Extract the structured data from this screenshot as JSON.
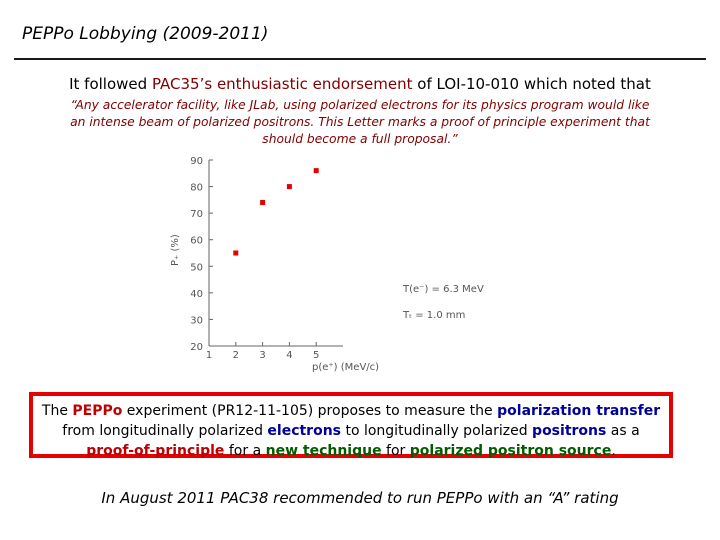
{
  "slide": {
    "title": "PEPPo Lobbying (2009-2011)",
    "lead_before": "It followed ",
    "lead_accent": "PAC35’s enthusiastic endorsement",
    "lead_after": " of LOI-10-010 which noted that",
    "quote_line1": "“Any accelerator facility, like JLab, using polarized electrons for its physics program would like",
    "quote_line2": "an intense beam of polarized positrons. This Letter marks a proof of principle experiment that",
    "quote_line3": "should become a full proposal.”",
    "footer": "In August 2011 PAC38 recommended to run PEPPo with an “A” rating"
  },
  "box": {
    "t1": "The ",
    "t2": "PEPPo",
    "t3": " experiment (PR12-11-105) proposes to measure the ",
    "t4": "polarization transfer",
    "t5": "from longitudinally polarized ",
    "t6": "electrons",
    "t7": " to longitudinally polarized ",
    "t8": "positrons",
    "t9": " as a",
    "t10": "proof-of-principle",
    "t11": " for a ",
    "t12": "new technique",
    "t13": " for ",
    "t14": "polarized positron source",
    "t15": ".",
    "border_color": "#e60000"
  },
  "chart_data": {
    "type": "scatter",
    "x": [
      2,
      3,
      4,
      5
    ],
    "y": [
      55,
      74,
      80,
      86
    ],
    "ylabel": "P₊ (%)",
    "xlabel": "p(e⁺)  (MeV/c)",
    "ylim": [
      20,
      90
    ],
    "xlim": [
      1,
      6
    ],
    "yticks": [
      "20",
      "30",
      "40",
      "50",
      "60",
      "70",
      "80",
      "90"
    ],
    "xticks": [
      "1",
      "2",
      "3",
      "4",
      "5"
    ],
    "annotation1": "T(e⁻) = 6.3 MeV",
    "annotation2": "Tₜ = 1.0 mm",
    "marker_color": "#e60000",
    "grid": false
  }
}
